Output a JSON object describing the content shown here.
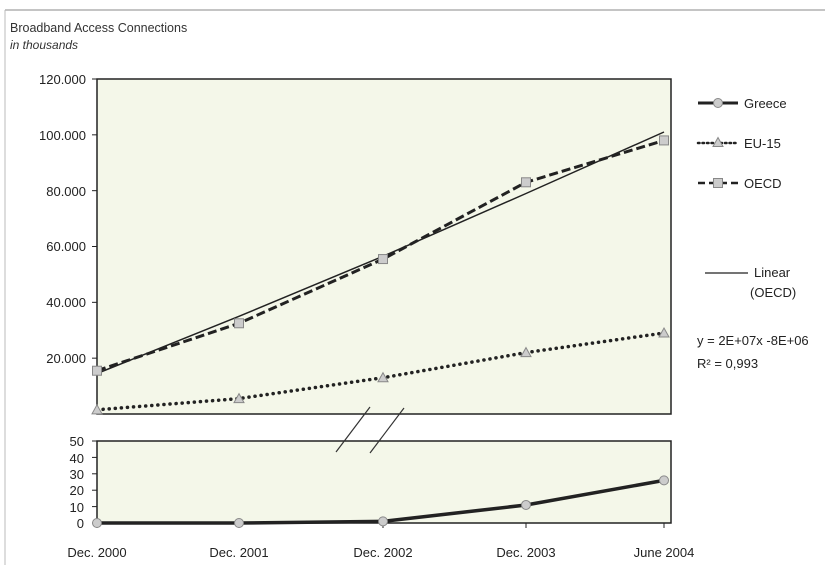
{
  "chart_data": {
    "type": "line",
    "title": "Broadband Access Connections",
    "subtitle": "in thousands",
    "categories": [
      "Dec. 2000",
      "Dec. 2001",
      "Dec. 2002",
      "Dec. 2003",
      "June 2004"
    ],
    "upper_panel": {
      "ylim": [
        0,
        120000
      ],
      "y_ticks": [
        "120.000",
        "100.000",
        "80.000",
        "60.000",
        "40.000",
        "20.000"
      ],
      "y_tick_values": [
        120000,
        100000,
        80000,
        60000,
        40000,
        20000
      ],
      "series": [
        {
          "name": "EU-15",
          "style": "dotted",
          "marker": "triangle",
          "values": [
            1500,
            5500,
            13000,
            22000,
            29000
          ]
        },
        {
          "name": "OECD",
          "style": "dashed",
          "marker": "square",
          "values": [
            15500,
            32500,
            55500,
            83000,
            98000
          ]
        },
        {
          "name": "Linear (OECD)",
          "style": "solid-thin",
          "marker": "none",
          "values": [
            14500,
            35000,
            56500,
            79000,
            101000
          ]
        }
      ]
    },
    "lower_panel": {
      "ylim": [
        0,
        50
      ],
      "y_ticks": [
        "50",
        "40",
        "30",
        "20",
        "10",
        "0"
      ],
      "y_tick_values": [
        50,
        40,
        30,
        20,
        10,
        0
      ],
      "series": [
        {
          "name": "Greece",
          "style": "solid-thick",
          "marker": "circle",
          "values": [
            0,
            0,
            1,
            11,
            26
          ]
        }
      ]
    },
    "legend": {
      "placement": "right",
      "entries": [
        "Greece",
        "EU-15",
        "OECD"
      ],
      "trend_label_line1": "Linear",
      "trend_label_line2": "(OECD)"
    },
    "trendline": {
      "equation": "y = 2E+07x -8E+06",
      "r2": "R² = 0,993"
    },
    "colors": {
      "plot_bg": "#f4f7e9",
      "marker_fill": "#cccccc",
      "line": "#222222"
    }
  }
}
